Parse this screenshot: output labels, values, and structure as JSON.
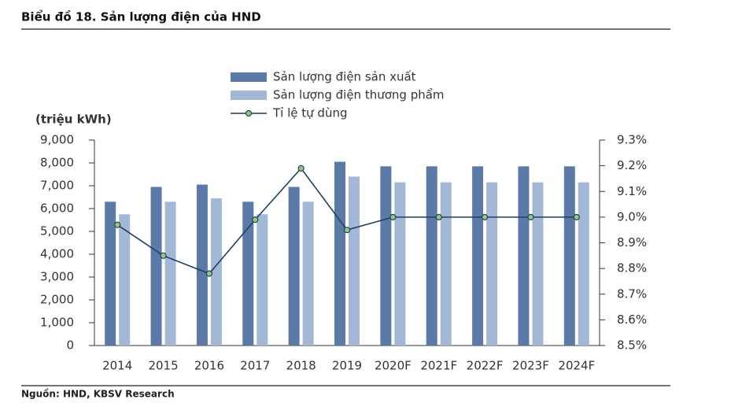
{
  "chart_data": {
    "type": "bar",
    "title": "Biểu đồ 18. Sản lượng điện của HND",
    "y_label": "(triệu kWh)",
    "source": "Nguồn: HND, KBSV Research",
    "categories": [
      "2014",
      "2015",
      "2016",
      "2017",
      "2018",
      "2019",
      "2020F",
      "2021F",
      "2022F",
      "2023F",
      "2024F"
    ],
    "series": [
      {
        "name": "Sản lượng điện sản xuất",
        "type": "bar",
        "color": "#5b7aa8",
        "values": [
          6300,
          6950,
          7050,
          6300,
          6950,
          8050,
          7850,
          7850,
          7850,
          7850,
          7850
        ]
      },
      {
        "name": "Sản lượng điện thương phẩm",
        "type": "bar",
        "color": "#a3b8d6",
        "values": [
          5750,
          6300,
          6450,
          5750,
          6300,
          7400,
          7150,
          7150,
          7150,
          7150,
          7150
        ]
      },
      {
        "name": "Tỉ lệ tự dùng",
        "type": "line",
        "axis": "y2",
        "color": "#1f3f66",
        "marker_color": "#9acd6a",
        "values": [
          8.97,
          8.85,
          8.78,
          8.99,
          9.19,
          8.95,
          9.0,
          9.0,
          9.0,
          9.0,
          9.0
        ]
      }
    ],
    "ylim": [
      0,
      9000
    ],
    "yticks": [
      0,
      {
        "value": 1000,
        "label": "1,000"
      },
      {
        "value": 2000,
        "label": "2,000"
      },
      {
        "value": 3000,
        "label": "3,000"
      },
      {
        "value": 4000,
        "label": "4,000"
      },
      {
        "value": 5000,
        "label": "5,000"
      },
      {
        "value": 6000,
        "label": "6,000"
      },
      {
        "value": 7000,
        "label": "7,000"
      },
      {
        "value": 8000,
        "label": "8,000"
      },
      {
        "value": 9000,
        "label": "9,000"
      }
    ],
    "y2lim": [
      8.5,
      9.3
    ],
    "y2ticks": [
      {
        "value": 8.5,
        "label": "8.5%"
      },
      {
        "value": 8.6,
        "label": "8.6%"
      },
      {
        "value": 8.7,
        "label": "8.7%"
      },
      {
        "value": 8.8,
        "label": "8.8%"
      },
      {
        "value": 8.9,
        "label": "8.9%"
      },
      {
        "value": 9.0,
        "label": "9.0%"
      },
      {
        "value": 9.1,
        "label": "9.1%"
      },
      {
        "value": 9.2,
        "label": "9.2%"
      },
      {
        "value": 9.3,
        "label": "9.3%"
      }
    ],
    "grid": false
  }
}
